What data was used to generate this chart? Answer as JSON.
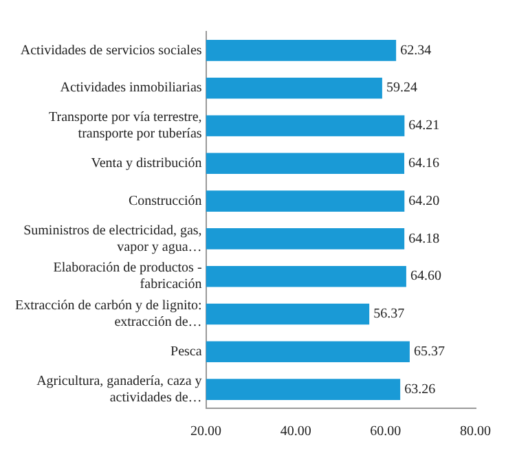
{
  "chart_data": {
    "type": "bar",
    "orientation": "horizontal",
    "categories": [
      "Actividades de servicios sociales",
      "Actividades inmobiliarias",
      "Transporte por vía terrestre, transporte por tuberías",
      "Venta y distribución",
      "Construcción",
      "Suministros de electricidad, gas, vapor y agua…",
      "Elaboración de productos - fabricación",
      "Extracción de carbón y de lignito: extracción de…",
      "Pesca",
      "Agricultura, ganadería, caza y actividades de…"
    ],
    "values": [
      62.34,
      59.24,
      64.21,
      64.16,
      64.2,
      64.18,
      64.6,
      56.37,
      65.37,
      63.26
    ],
    "value_labels": [
      "62.34",
      "59.24",
      "64.21",
      "64.16",
      "64.20",
      "64.18",
      "64.60",
      "56.37",
      "65.37",
      "63.26"
    ],
    "color": "#1a9ad6",
    "xlim": [
      20,
      80
    ],
    "xticks": [
      {
        "value": 20,
        "label": "20.00"
      },
      {
        "value": 40,
        "label": "40.00"
      },
      {
        "value": 60,
        "label": "60.00"
      },
      {
        "value": 80,
        "label": "80.00"
      }
    ],
    "grid": false,
    "legend": false
  }
}
